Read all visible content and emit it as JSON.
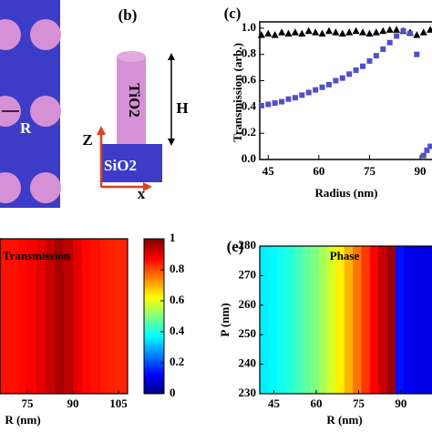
{
  "panel_a": {
    "label": "R"
  },
  "panel_b": {
    "label": "(b)",
    "pillar": "TiO2",
    "substrate": "SiO2",
    "height": "H",
    "z_axis": "Z",
    "x_axis": "x"
  },
  "chart_data": [
    {
      "type": "scatter",
      "label": "(c)",
      "y_label": "Transmission (arb.)",
      "x_label": "Radius (nm)",
      "xlim": [
        42.5,
        93.5
      ],
      "xticks": [
        45,
        60,
        75,
        90
      ],
      "ylim": [
        0,
        1.02
      ],
      "yticks": [
        {
          "value": 0,
          "label": "0.0"
        },
        0.2,
        0.4,
        0.6,
        0.8,
        {
          "value": 1,
          "label": "1.0"
        }
      ],
      "series": [
        {
          "color": "#000000",
          "marker": "triangle",
          "x": [
            43,
            45,
            47,
            49,
            51,
            53,
            55,
            57,
            59,
            61,
            63,
            65,
            67,
            69,
            71,
            73,
            75,
            77,
            79,
            81,
            83,
            85,
            87,
            89,
            91,
            93
          ],
          "y": [
            0.95,
            0.96,
            0.95,
            0.97,
            0.96,
            0.97,
            0.96,
            0.98,
            0.97,
            0.96,
            0.98,
            0.97,
            0.96,
            0.97,
            0.98,
            0.97,
            0.96,
            0.97,
            0.98,
            0.99,
            0.99,
            0.98,
            0.97,
            0.95,
            0.97,
            0.99
          ]
        },
        {
          "color": "#5050c8",
          "marker": "square",
          "x": [
            43,
            45,
            47,
            49,
            51,
            53,
            55,
            57,
            59,
            61,
            63,
            65,
            67,
            69,
            71,
            73,
            75,
            77,
            79,
            81,
            83,
            85,
            87,
            89,
            91,
            92,
            93
          ],
          "y": [
            0.41,
            0.42,
            0.43,
            0.44,
            0.46,
            0.47,
            0.49,
            0.51,
            0.53,
            0.55,
            0.57,
            0.6,
            0.62,
            0.65,
            0.68,
            0.71,
            0.75,
            0.79,
            0.84,
            0.89,
            0.94,
            0.98,
            0.96,
            0.8,
            0.03,
            0.07,
            0.1
          ]
        }
      ]
    },
    {
      "type": "heatmap",
      "title": "Transmission",
      "x_label": "R (nm)",
      "xlim": [
        66,
        108
      ],
      "xticks": [
        75,
        90,
        105
      ],
      "clim": [
        0,
        1
      ],
      "cticks": [
        0,
        0.2,
        0.4,
        0.6,
        0.8,
        1
      ],
      "x": [
        66,
        69,
        72,
        75,
        78,
        81,
        84,
        87,
        90,
        93,
        96,
        99,
        102,
        105
      ],
      "values": [
        0.86,
        0.86,
        0.87,
        0.88,
        0.9,
        0.93,
        0.96,
        0.94,
        0.9,
        0.87,
        0.86,
        0.85,
        0.84,
        0.84
      ]
    },
    {
      "type": "heatmap",
      "label": "(e)",
      "title": "Phase",
      "x_label": "R (nm)",
      "y_label": "P (nm)",
      "xlim": [
        40,
        101
      ],
      "xticks": [
        45,
        60,
        75,
        90
      ],
      "ylim": [
        230,
        280
      ],
      "yticks": [
        230,
        240,
        250,
        260,
        270,
        280
      ],
      "clim": [
        0,
        1
      ],
      "x": [
        40,
        43,
        46,
        49,
        52,
        55,
        58,
        61,
        64,
        67,
        70,
        73,
        76,
        79,
        82,
        85,
        88,
        91,
        94,
        97
      ],
      "values": [
        0.36,
        0.37,
        0.39,
        0.41,
        0.44,
        0.47,
        0.5,
        0.54,
        0.59,
        0.64,
        0.7,
        0.76,
        0.82,
        0.88,
        0.93,
        0.97,
        0.14,
        0.11,
        0.1,
        0.1
      ]
    }
  ]
}
